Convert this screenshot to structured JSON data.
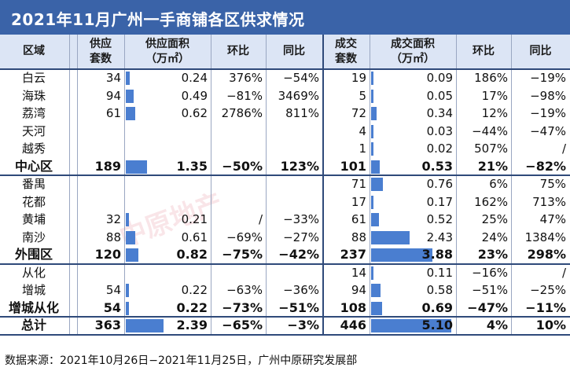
{
  "title": "2021年11月广州一手商铺各区供求情况",
  "headers": {
    "district": "区域",
    "supply_units": [
      "供应",
      "套数"
    ],
    "supply_area": "供应面积",
    "supply_area_unit": "（万㎡）",
    "supply_mom": "环比",
    "supply_yoy": "同比",
    "deal_units": [
      "成交",
      "套数"
    ],
    "deal_area": "成交面积",
    "deal_area_unit": "（万㎡）",
    "deal_mom": "环比",
    "deal_yoy": "同比"
  },
  "chart_data": {
    "type": "table",
    "columns": [
      "区域",
      "供应套数",
      "供应面积（万㎡）",
      "环比",
      "同比",
      "成交套数",
      "成交面积（万㎡）",
      "环比",
      "同比"
    ],
    "rows": [
      {
        "name": "白云",
        "su": "34",
        "sa": "0.24",
        "sm": "376%",
        "sy": "−54%",
        "du": "19",
        "da": "0.09",
        "dm": "186%",
        "dy": "−19%",
        "type": "district"
      },
      {
        "name": "海珠",
        "su": "94",
        "sa": "0.49",
        "sm": "−81%",
        "sy": "3469%",
        "du": "5",
        "da": "0.05",
        "dm": "17%",
        "dy": "−98%",
        "type": "district"
      },
      {
        "name": "荔湾",
        "su": "61",
        "sa": "0.62",
        "sm": "2786%",
        "sy": "811%",
        "du": "72",
        "da": "0.34",
        "dm": "12%",
        "dy": "−19%",
        "type": "district"
      },
      {
        "name": "天河",
        "su": "",
        "sa": "",
        "sm": "",
        "sy": "",
        "du": "4",
        "da": "0.03",
        "dm": "−44%",
        "dy": "−47%",
        "type": "district"
      },
      {
        "name": "越秀",
        "su": "",
        "sa": "",
        "sm": "",
        "sy": "",
        "du": "1",
        "da": "0.02",
        "dm": "507%",
        "dy": "/",
        "type": "district"
      },
      {
        "name": "中心区",
        "su": "189",
        "sa": "1.35",
        "sm": "−50%",
        "sy": "123%",
        "du": "101",
        "da": "0.53",
        "dm": "21%",
        "dy": "−82%",
        "type": "subtotal"
      },
      {
        "name": "番禺",
        "su": "",
        "sa": "",
        "sm": "",
        "sy": "",
        "du": "71",
        "da": "0.76",
        "dm": "6%",
        "dy": "75%",
        "type": "district"
      },
      {
        "name": "花都",
        "su": "",
        "sa": "",
        "sm": "",
        "sy": "",
        "du": "17",
        "da": "0.17",
        "dm": "162%",
        "dy": "713%",
        "type": "district"
      },
      {
        "name": "黄埔",
        "su": "32",
        "sa": "0.21",
        "sm": "/",
        "sy": "−33%",
        "du": "61",
        "da": "0.52",
        "dm": "25%",
        "dy": "47%",
        "type": "district"
      },
      {
        "name": "南沙",
        "su": "88",
        "sa": "0.61",
        "sm": "−69%",
        "sy": "−27%",
        "du": "88",
        "da": "2.43",
        "dm": "24%",
        "dy": "1384%",
        "type": "district"
      },
      {
        "name": "外围区",
        "su": "120",
        "sa": "0.82",
        "sm": "−75%",
        "sy": "−42%",
        "du": "237",
        "da": "3.88",
        "dm": "23%",
        "dy": "298%",
        "type": "subtotal"
      },
      {
        "name": "从化",
        "su": "",
        "sa": "",
        "sm": "",
        "sy": "",
        "du": "14",
        "da": "0.11",
        "dm": "−16%",
        "dy": "/",
        "type": "district"
      },
      {
        "name": "增城",
        "su": "54",
        "sa": "0.22",
        "sm": "−63%",
        "sy": "−36%",
        "du": "94",
        "da": "0.58",
        "dm": "−51%",
        "dy": "−25%",
        "type": "district"
      },
      {
        "name": "增城从化",
        "su": "54",
        "sa": "0.22",
        "sm": "−73%",
        "sy": "−51%",
        "du": "108",
        "da": "0.69",
        "dm": "−47%",
        "dy": "−11%",
        "type": "subtotal"
      },
      {
        "name": "总计",
        "su": "363",
        "sa": "2.39",
        "sm": "−65%",
        "sy": "−3%",
        "du": "446",
        "da": "5.10",
        "dm": "4%",
        "dy": "10%",
        "type": "total"
      }
    ]
  },
  "source_note": "数据来源：2021年10月26日−2021年11月25日，广州中原研究发展部",
  "watermark_text": "中原地产",
  "colors": {
    "title_bg": "#3a63a8",
    "header_bg": "#dce5f5",
    "bar": "#4a7ed0"
  }
}
